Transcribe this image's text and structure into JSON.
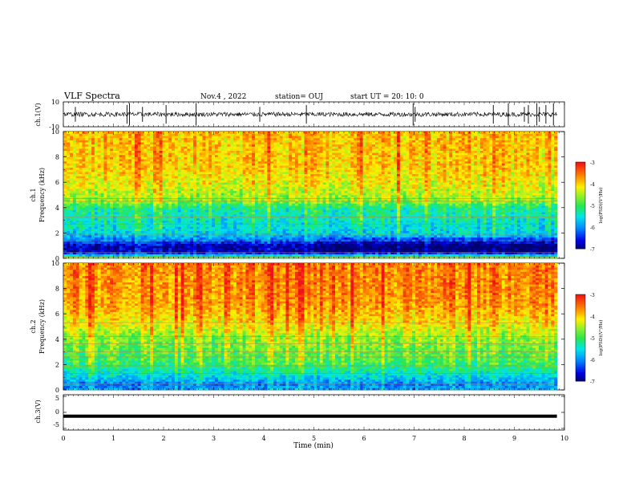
{
  "header": {
    "title": "VLF Spectra",
    "date": "Nov.4 , 2022",
    "station": "station= OUJ",
    "start": "start  UT  =   20: 10: 0"
  },
  "chart_data": [
    {
      "type": "line",
      "name": "ch1_waveform",
      "ylabel": "ch.1(V)",
      "ylim": [
        -10,
        10
      ],
      "yticks": [
        "10",
        "-10"
      ],
      "xlim": [
        0,
        10
      ],
      "baseline": 0,
      "noise_band": [
        -3,
        3
      ],
      "spikes_min": [
        0.24,
        1.27,
        1.32,
        1.58,
        2.05,
        2.65,
        3.92,
        4.85,
        6.98,
        7.02,
        8.58,
        8.88,
        9.2,
        9.28,
        9.45,
        9.5,
        9.63,
        9.78
      ]
    },
    {
      "type": "heatmap",
      "name": "ch1_spectrogram",
      "ylabel": "ch.1\nFrequency  (kHz)",
      "ylim": [
        0,
        10
      ],
      "yticks": [
        "0",
        "2",
        "4",
        "6",
        "8",
        "10"
      ],
      "xlim": [
        0,
        9.85
      ],
      "colorbar": {
        "label": "log(PSD)(V²/Hz)",
        "range": [
          -7,
          -3
        ],
        "ticks": [
          "-3",
          "-4",
          "-5",
          "-6",
          "-7"
        ]
      },
      "profile_khz": [
        0,
        0.5,
        1.0,
        1.5,
        2.0,
        3.0,
        4.0,
        4.5,
        5.5,
        7.0,
        10.0
      ],
      "profile_level": [
        -4.6,
        -6.7,
        -6.8,
        -6.0,
        -5.6,
        -5.4,
        -5.2,
        -4.6,
        -4.3,
        -4.0,
        -3.9
      ],
      "hlines_khz": [
        0.1,
        0.45,
        1.4,
        1.9,
        2.7,
        3.25,
        4.5,
        4.72
      ]
    },
    {
      "type": "heatmap",
      "name": "ch2_spectrogram",
      "ylabel": "ch.2\nFrequency  (kHz)",
      "ylim": [
        0,
        10
      ],
      "yticks": [
        "0",
        "2",
        "4",
        "6",
        "8",
        "10"
      ],
      "xlim": [
        0,
        9.85
      ],
      "colorbar": {
        "label": "log(PSD)(V²/Hz)",
        "range": [
          -7,
          -3
        ],
        "ticks": [
          "-3",
          "-4",
          "-5",
          "-6",
          "-7"
        ]
      },
      "profile_khz": [
        0,
        0.5,
        1.0,
        1.5,
        2.0,
        3.0,
        4.0,
        5.0,
        6.0,
        7.0,
        10.0
      ],
      "profile_level": [
        -5.9,
        -6.0,
        -5.6,
        -5.3,
        -5.0,
        -4.8,
        -4.6,
        -4.2,
        -3.9,
        -3.7,
        -3.6
      ],
      "hlines_khz": [
        0.5,
        1.3,
        1.9,
        2.6,
        3.0,
        3.65,
        4.2,
        5.3
      ]
    },
    {
      "type": "line",
      "name": "ch3_waveform",
      "ylabel": "ch.3(V)",
      "ylim": [
        -5,
        5
      ],
      "yticks": [
        "5",
        "0",
        "-5"
      ],
      "xlim": [
        0,
        9.85
      ],
      "values": [
        [
          0,
          -1.2
        ],
        [
          9.85,
          -1.2
        ]
      ]
    }
  ],
  "xaxis": {
    "label": "Time  (min)",
    "ticks": [
      "0",
      "1",
      "2",
      "3",
      "4",
      "5",
      "6",
      "7",
      "8",
      "9",
      "10"
    ],
    "range": [
      0,
      10
    ]
  }
}
